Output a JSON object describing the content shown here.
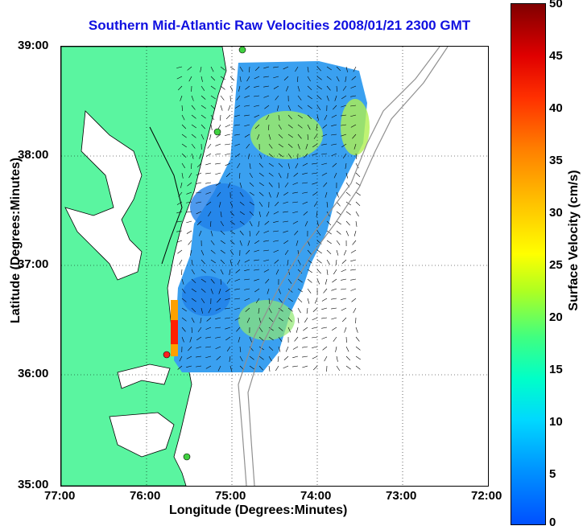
{
  "title": "Southern Mid-Atlantic Raw Velocities 2008/01/21 2300 GMT",
  "x_axis": {
    "label": "Longitude (Degrees:Minutes)",
    "ticks": [
      "77:00",
      "76:00",
      "75:00",
      "74:00",
      "73:00",
      "72:00"
    ]
  },
  "y_axis": {
    "label": "Latitude (Degrees:Minutes)",
    "ticks": [
      "39:00",
      "38:00",
      "37:00",
      "36:00",
      "35:00"
    ]
  },
  "colorbar": {
    "label": "Surface Velocity (cm/s)",
    "ticks": [
      "50",
      "45",
      "40",
      "35",
      "30",
      "25",
      "20",
      "15",
      "10",
      "5",
      "0"
    ]
  },
  "colors": {
    "land": "#5af5a0",
    "title": "#1010e0",
    "water_field": "#3aa0f0",
    "station_green": "#40d040",
    "station_red": "#ff2020"
  }
}
